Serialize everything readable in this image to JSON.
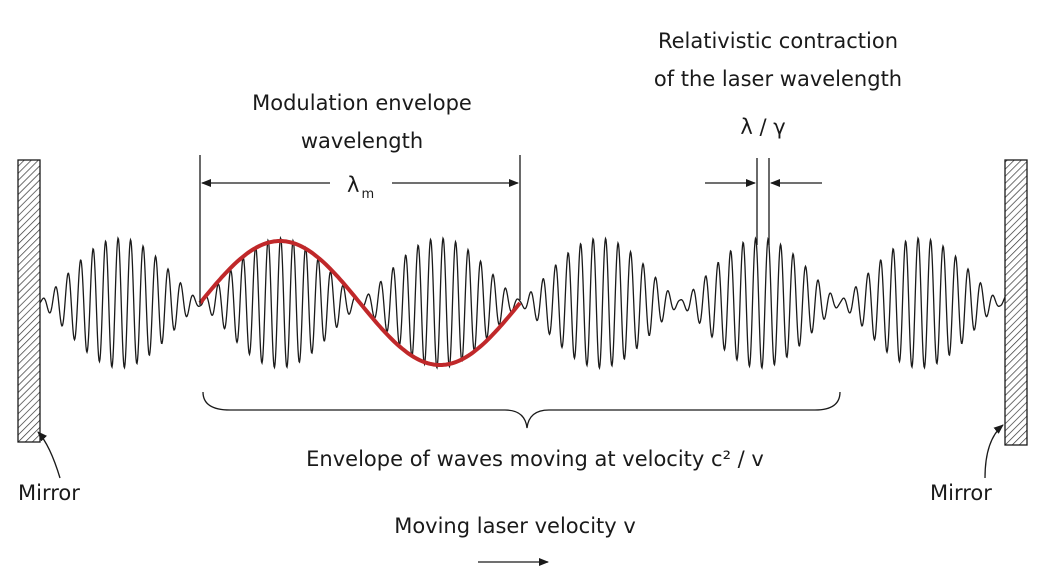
{
  "labels": {
    "contraction": [
      "Relativistic contraction",
      "of the laser wavelength"
    ],
    "contraction_symbol": "λ / γ",
    "envelope_title": [
      "Modulation envelope",
      "wavelength"
    ],
    "envelope_symbol": {
      "symbol": "λ",
      "subscript": "m"
    },
    "envelope_velocity": "Envelope of waves moving at velocity c² / v",
    "mirror_left": "Mirror",
    "mirror_right": "Mirror",
    "laser_velocity": "Moving laser velocity v"
  }
}
